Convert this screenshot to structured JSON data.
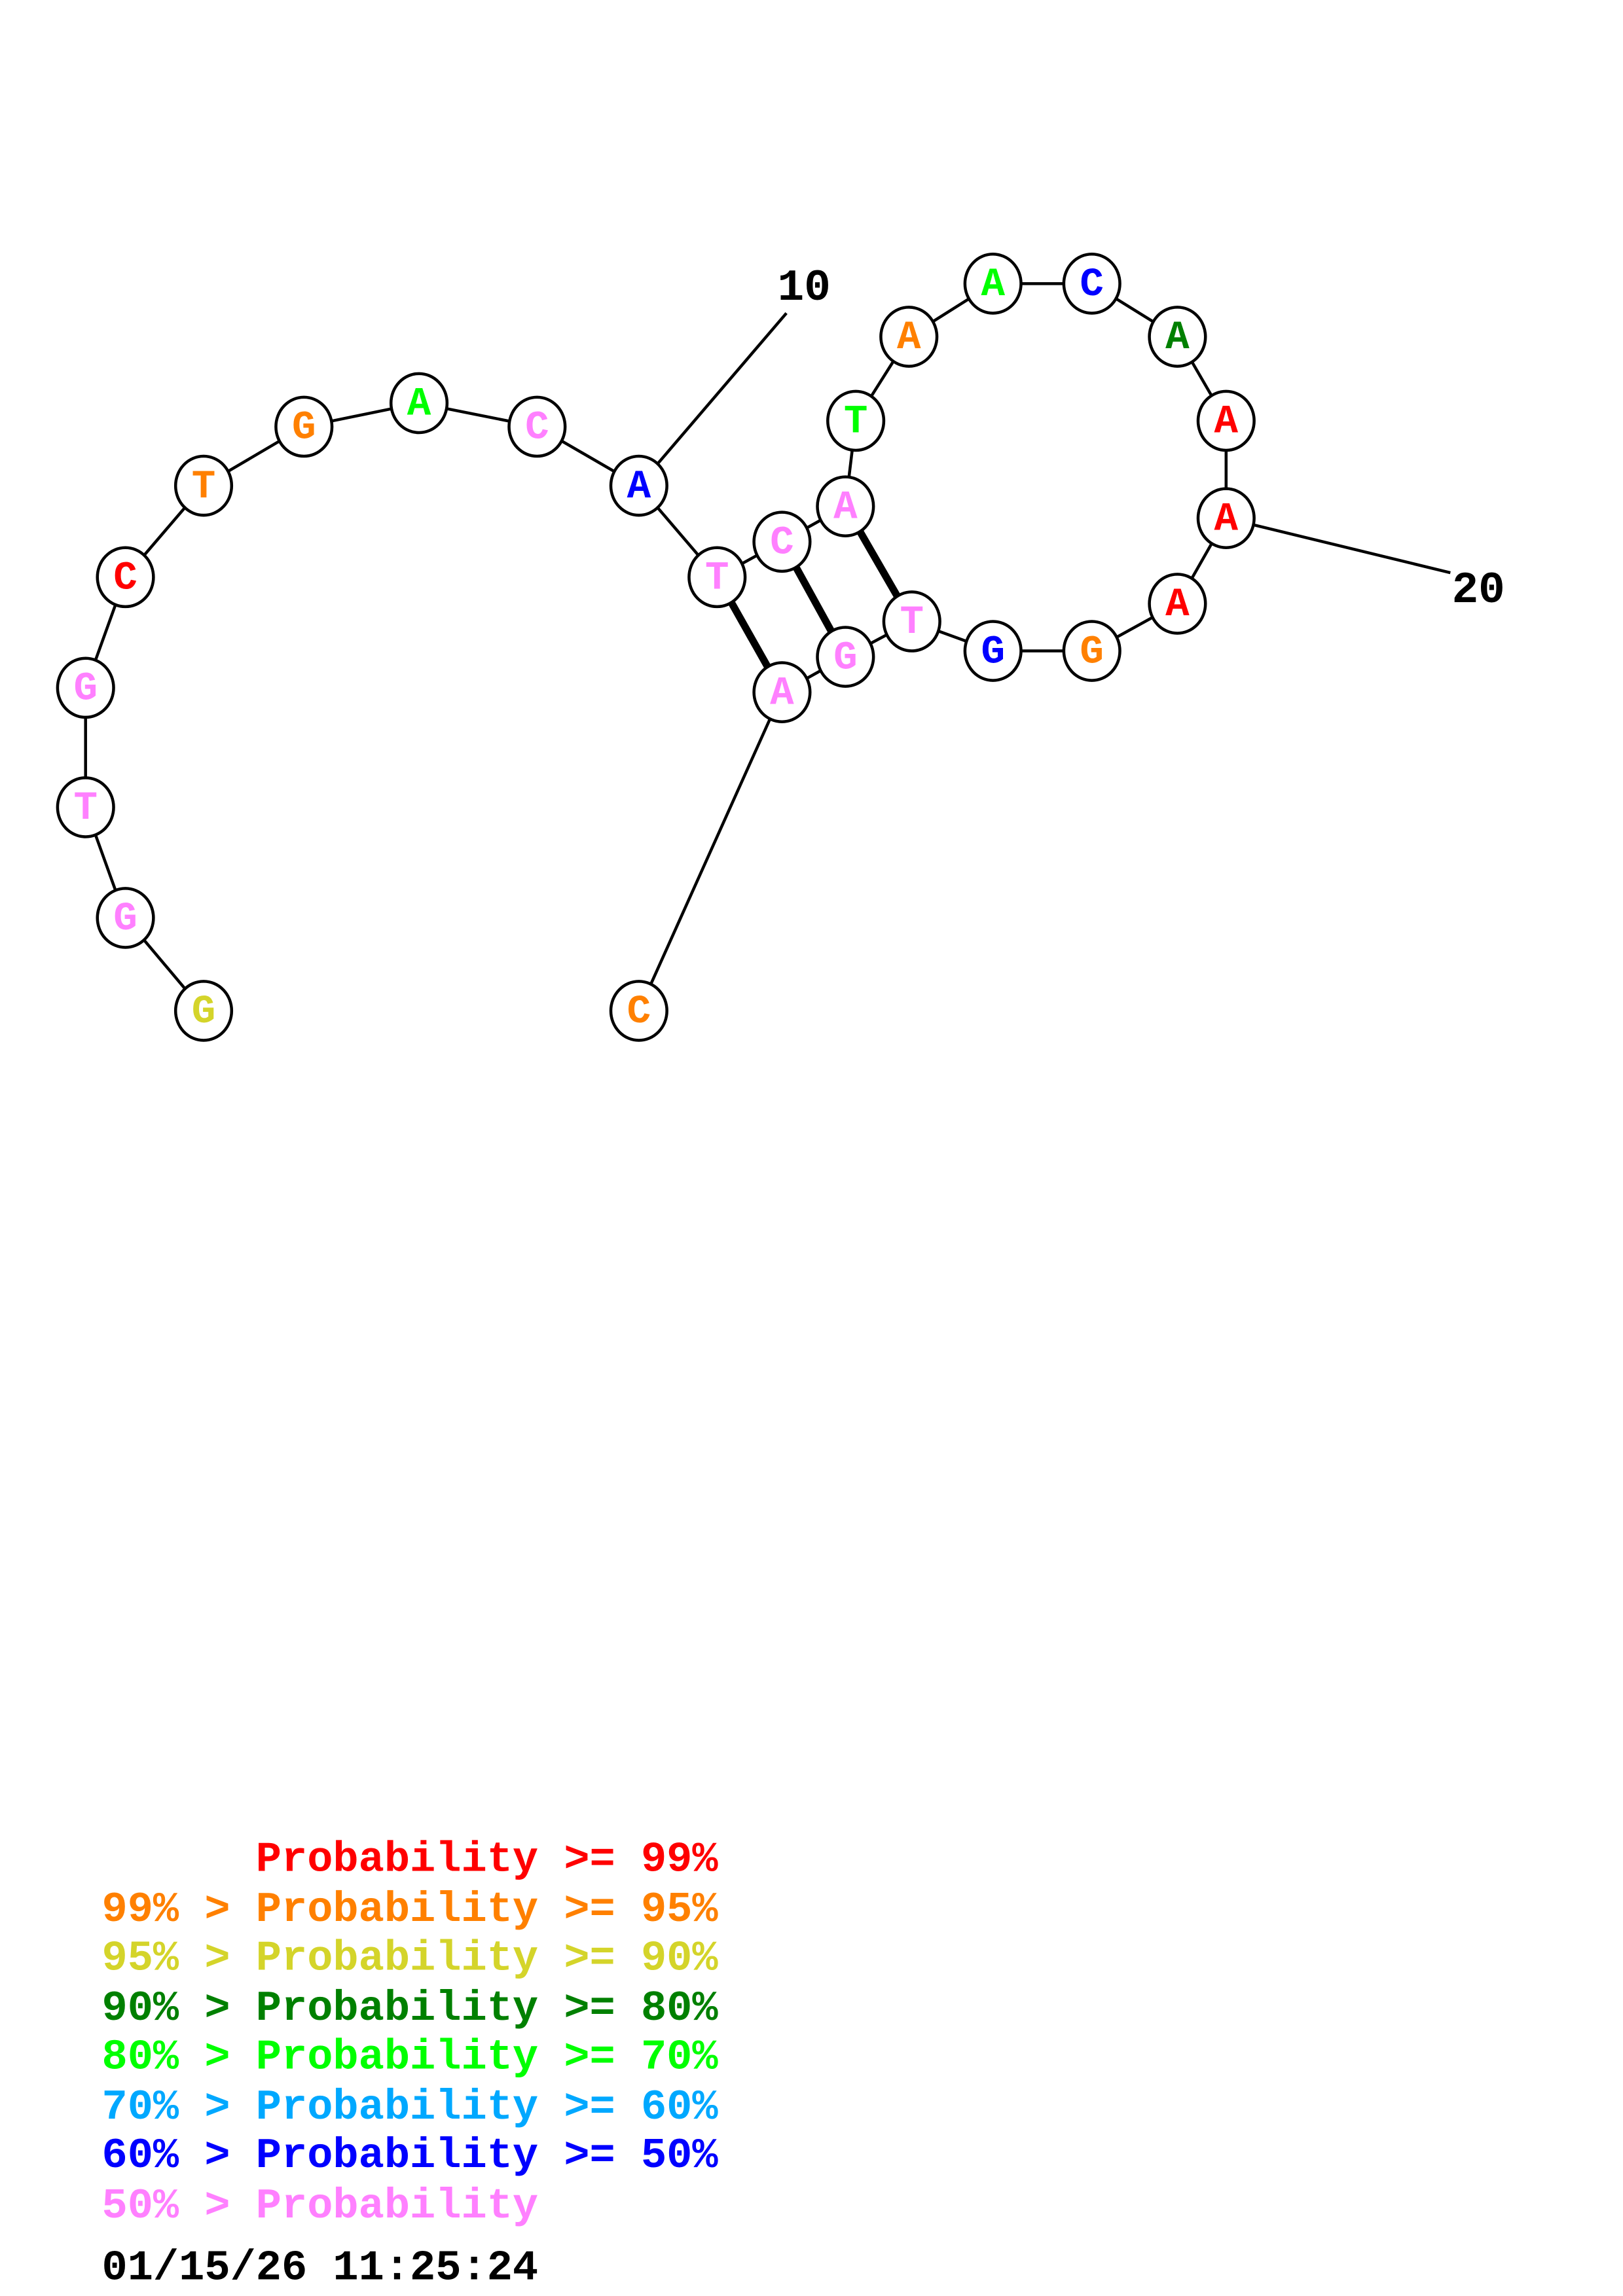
{
  "structure": {
    "sequence": [
      "G",
      "G",
      "T",
      "G",
      "C",
      "T",
      "G",
      "A",
      "C",
      "A",
      "T",
      "C",
      "A",
      "T",
      "A",
      "A",
      "C",
      "A",
      "A",
      "A",
      "A",
      "G",
      "G",
      "T",
      "G",
      "A",
      "C"
    ],
    "base_colors": [
      "#d4d42a",
      "#ff80ff",
      "#ff80ff",
      "#ff80ff",
      "#ff0000",
      "#ff8000",
      "#ff8000",
      "#00ff00",
      "#ff80ff",
      "#0000ff",
      "#ff80ff",
      "#ff80ff",
      "#ff80ff",
      "#00ff00",
      "#ff8000",
      "#00ff00",
      "#0000ff",
      "#008000",
      "#ff0000",
      "#ff0000",
      "#ff0000",
      "#ff8000",
      "#0000ff",
      "#ff80ff",
      "#ff80ff",
      "#ff80ff",
      "#ff8000"
    ],
    "pairs": [
      [
        11,
        26
      ],
      [
        12,
        25
      ],
      [
        13,
        24
      ]
    ],
    "position_labels": [
      {
        "text": "10",
        "index": 10
      },
      {
        "text": "20",
        "index": 20
      }
    ]
  },
  "legend": {
    "rows": [
      {
        "text": "      Probability >= 99%",
        "color": "#ff0000"
      },
      {
        "text": "99% > Probability >= 95%",
        "color": "#ff8000"
      },
      {
        "text": "95% > Probability >= 90%",
        "color": "#d4d42a"
      },
      {
        "text": "90% > Probability >= 80%",
        "color": "#008000"
      },
      {
        "text": "80% > Probability >= 70%",
        "color": "#00ff00"
      },
      {
        "text": "70% > Probability >= 60%",
        "color": "#00a8ff"
      },
      {
        "text": "60% > Probability >= 50%",
        "color": "#0000ff"
      },
      {
        "text": "50% > Probability",
        "color": "#ff80ff"
      }
    ],
    "timestamp": "01/15/26 11:25:24"
  }
}
